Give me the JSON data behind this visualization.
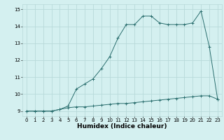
{
  "title": "",
  "xlabel": "Humidex (Indice chaleur)",
  "x_hours": [
    0,
    1,
    2,
    3,
    4,
    5,
    6,
    7,
    8,
    9,
    10,
    11,
    12,
    13,
    14,
    15,
    16,
    17,
    18,
    19,
    20,
    21,
    22,
    23
  ],
  "line1_y": [
    9.0,
    9.0,
    9.0,
    9.0,
    9.1,
    9.2,
    9.25,
    9.25,
    9.3,
    9.35,
    9.4,
    9.45,
    9.45,
    9.5,
    9.55,
    9.6,
    9.65,
    9.7,
    9.75,
    9.8,
    9.85,
    9.9,
    9.9,
    9.7
  ],
  "line2_y": [
    9.0,
    9.0,
    9.0,
    9.0,
    9.1,
    9.3,
    10.3,
    10.6,
    10.9,
    11.5,
    12.2,
    13.3,
    14.1,
    14.1,
    14.6,
    14.6,
    14.2,
    14.1,
    14.1,
    14.1,
    14.2,
    14.9,
    12.8,
    9.7
  ],
  "line_color": "#2a6e6e",
  "bg_color": "#d4f0f0",
  "grid_color": "#b8dada",
  "ylim": [
    8.7,
    15.3
  ],
  "xlim": [
    -0.5,
    23.5
  ],
  "yticks": [
    9,
    10,
    11,
    12,
    13,
    14,
    15
  ],
  "xticks": [
    0,
    1,
    2,
    3,
    4,
    5,
    6,
    7,
    8,
    9,
    10,
    11,
    12,
    13,
    14,
    15,
    16,
    17,
    18,
    19,
    20,
    21,
    22,
    23
  ],
  "ylabel_fontsize": 6.0,
  "xlabel_fontsize": 6.5,
  "tick_fontsize": 5.0
}
